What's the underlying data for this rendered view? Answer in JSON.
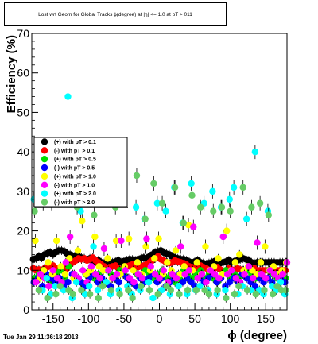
{
  "chart_data": {
    "type": "scatter",
    "title": "Lost wrt Geom for Global Tracks ϕ(degree) at |η| <= 1.0 at pT > 011",
    "xlabel": "ϕ (degree)",
    "ylabel": "Efficiency (%)",
    "xlim": [
      -180,
      180
    ],
    "ylim": [
      0,
      70
    ],
    "x_ticks": [
      -150,
      -100,
      -50,
      0,
      50,
      100,
      150
    ],
    "y_ticks": [
      0,
      10,
      20,
      30,
      40,
      50,
      60,
      70
    ],
    "grid": false,
    "legend_position": "center-left",
    "timestamp": "Tue Jan 29 11:36:18 2013",
    "series": [
      {
        "name": "(+) with pT > 0.1",
        "color": "#000000",
        "x_start": -178,
        "x_step": 4,
        "values": [
          12.8,
          13.0,
          13.5,
          13.2,
          14.0,
          14.3,
          14.5,
          14.0,
          14.6,
          15.0,
          15.0,
          14.8,
          14.2,
          14.0,
          13.5,
          13.8,
          13.5,
          13.2,
          13.0,
          12.8,
          13.0,
          12.5,
          12.2,
          12.5,
          12.0,
          11.8,
          12.0,
          11.8,
          12.0,
          12.2,
          12.5,
          12.0,
          12.3,
          12.5,
          12.8,
          12.7,
          12.5,
          12.8,
          13.0,
          13.2,
          13.0,
          13.5,
          14.0,
          14.5,
          14.8,
          15.0,
          14.5,
          14.2,
          14.0,
          13.5,
          13.2,
          13.0,
          12.8,
          12.8,
          12.5,
          12.2,
          12.0,
          12.2,
          12.5,
          12.0,
          11.8,
          11.5,
          11.8,
          12.0,
          12.3,
          12.0,
          11.8,
          12.0,
          12.2,
          12.5,
          12.0,
          12.3,
          12.5,
          12.8,
          13.0,
          12.8,
          12.5,
          12.0,
          11.8,
          12.0,
          12.0,
          12.0,
          12.0,
          12.0,
          12.0,
          12.0,
          12.0,
          12.0,
          12.0,
          12.0
        ]
      },
      {
        "name": "(-) with pT > 0.1",
        "color": "#ff0000",
        "x_start": -178,
        "x_step": 4,
        "values": [
          10.5,
          10.0,
          10.2,
          9.8,
          10.5,
          10.8,
          11.0,
          11.2,
          10.5,
          10.0,
          10.3,
          11.0,
          10.5,
          11.5,
          12.0,
          12.5,
          13.0,
          12.8,
          13.0,
          12.5,
          12.8,
          13.2,
          12.5,
          12.0,
          11.5,
          11.0,
          10.5,
          10.8,
          11.0,
          11.2,
          10.5,
          10.0,
          10.5,
          11.0,
          11.2,
          11.5,
          11.0,
          10.8,
          11.0,
          11.2,
          11.5,
          12.0,
          12.5,
          13.0,
          13.5,
          12.8,
          12.5,
          12.0,
          11.8,
          12.0,
          12.5,
          12.2,
          12.0,
          11.8,
          11.5,
          11.0,
          10.8,
          10.5,
          11.0,
          11.2,
          10.8,
          10.5,
          10.2,
          10.0,
          10.5,
          10.8,
          10.2,
          9.8,
          10.0,
          10.5,
          10.2,
          10.0,
          10.5,
          10.2,
          10.0,
          9.8,
          10.0,
          10.2,
          10.5,
          10.0,
          10.0,
          10.0,
          10.0,
          10.0,
          10.0,
          10.0,
          10.0,
          10.0,
          10.0,
          10.0
        ]
      },
      {
        "name": "(+) with pT > 0.5",
        "color": "#00dd00",
        "x_start": -176,
        "x_step": 6,
        "values": [
          8,
          9,
          10,
          8,
          7,
          9,
          10,
          8,
          11,
          9,
          8,
          7,
          9,
          10,
          8,
          9,
          7,
          10,
          9,
          8,
          10,
          9,
          8,
          7,
          9,
          8,
          10,
          9,
          8,
          9,
          10,
          8,
          9,
          7,
          8,
          10,
          9,
          8,
          9,
          10,
          8,
          9,
          8,
          7,
          9,
          10,
          8,
          9,
          8,
          9,
          10,
          9,
          8,
          9,
          8,
          10,
          9,
          8,
          9,
          8
        ]
      },
      {
        "name": "(-) with pT > 0.5",
        "color": "#0000ff",
        "x_start": -177,
        "x_step": 6,
        "values": [
          7,
          8,
          6,
          9,
          8,
          7,
          8,
          6,
          7,
          9,
          8,
          7,
          6,
          8,
          9,
          7,
          8,
          7,
          6,
          8,
          7,
          9,
          8,
          7,
          6,
          8,
          7,
          8,
          9,
          7,
          8,
          6,
          7,
          8,
          9,
          7,
          8,
          7,
          6,
          8,
          7,
          8,
          9,
          7,
          8,
          6,
          7,
          8,
          7,
          9,
          8,
          7,
          6,
          8,
          7,
          8,
          7,
          9,
          8,
          7
        ]
      },
      {
        "name": "(+) with pT > 1.0",
        "color": "#ffff00",
        "x_start": -175,
        "x_step": 6,
        "values": [
          17.5,
          8,
          10,
          12,
          9,
          17.5,
          11,
          9,
          13,
          8,
          15,
          22.5,
          9,
          10,
          18.5,
          11,
          10,
          13,
          8,
          17.5,
          9,
          11,
          18,
          10,
          12,
          9,
          16,
          10,
          13,
          18,
          9,
          12,
          10,
          15,
          9,
          11,
          21.5,
          10,
          12,
          9,
          16,
          10,
          11,
          13,
          9,
          20,
          10,
          12,
          14,
          10,
          11,
          10,
          9,
          12,
          16,
          10,
          11,
          9,
          10,
          12
        ]
      },
      {
        "name": "(-) with pT > 1.0",
        "color": "#ff00ff",
        "x_start": -174,
        "x_step": 6,
        "values": [
          7,
          9,
          8,
          6,
          10,
          8,
          7,
          12,
          18.5,
          9,
          8,
          10,
          7,
          11,
          9,
          8,
          15.5,
          10,
          8,
          9,
          17.5,
          10,
          8,
          7,
          9,
          8,
          18,
          11,
          9,
          8,
          10,
          7,
          9,
          8,
          16,
          9,
          10,
          21,
          8,
          9,
          7,
          10,
          9,
          8,
          18.5,
          9,
          10,
          8,
          7,
          9,
          11,
          8,
          17,
          9,
          8,
          10,
          9,
          8,
          9,
          12
        ]
      },
      {
        "name": "(+) with pT > 2.0",
        "color": "#00ffff",
        "x_start": -177,
        "x_step": 6,
        "values": [
          28,
          30,
          5,
          8,
          4,
          6,
          29,
          5,
          54,
          3,
          7,
          25,
          4,
          6,
          16,
          5,
          30,
          7,
          4,
          28,
          5,
          35,
          6,
          4,
          26,
          5,
          23,
          7,
          3,
          27,
          5,
          25,
          4,
          31,
          6,
          22,
          4,
          32,
          5,
          6,
          27,
          5,
          30,
          4,
          26,
          5,
          28,
          31,
          4,
          6,
          23,
          5,
          40,
          5,
          4,
          25,
          6,
          5,
          7,
          4
        ]
      },
      {
        "name": "(-) with pT > 2.0",
        "color": "#66cc66",
        "x_start": -176,
        "x_step": 6,
        "values": [
          25,
          5,
          27,
          3,
          27,
          4,
          6,
          30,
          5,
          4,
          26,
          5,
          33,
          4,
          24,
          3,
          6,
          32,
          5,
          26,
          4,
          29,
          5,
          3,
          34,
          6,
          23,
          5,
          32,
          4,
          27,
          6,
          5,
          31,
          4,
          22,
          5,
          29,
          5,
          26,
          5,
          4,
          25,
          5,
          26,
          3,
          25,
          4,
          6,
          31,
          5,
          26,
          4,
          27,
          5,
          24,
          4,
          6,
          5,
          5
        ]
      }
    ]
  }
}
